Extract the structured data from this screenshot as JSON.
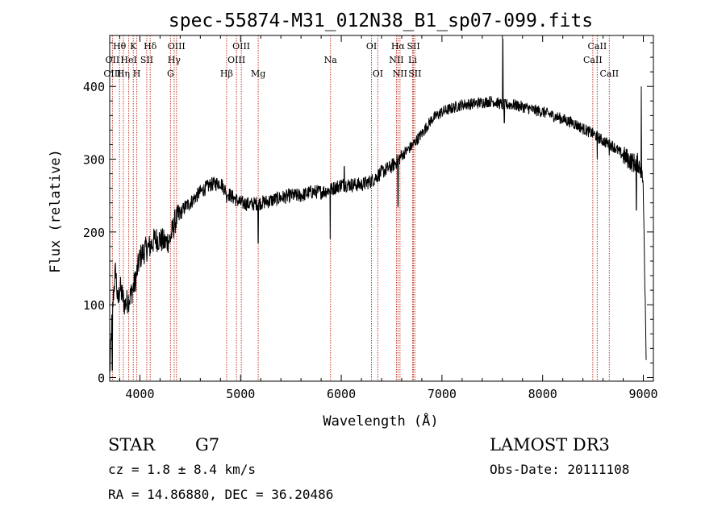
{
  "chart_data": {
    "type": "line",
    "title": "spec-55874-M31_012N38_B1_sp07-099.fits",
    "xlabel": "Wavelength (Å)",
    "ylabel": "Flux (relative)",
    "xlim": [
      3700,
      9100
    ],
    "ylim": [
      -5,
      470
    ],
    "x_ticks": [
      4000,
      5000,
      6000,
      7000,
      8000,
      9000
    ],
    "y_ticks": [
      0,
      100,
      200,
      300,
      400
    ],
    "series": [
      {
        "name": "spectrum",
        "anchors": [
          [
            3700,
            5
          ],
          [
            3720,
            70
          ],
          [
            3740,
            120
          ],
          [
            3760,
            150
          ],
          [
            3780,
            100
          ],
          [
            3800,
            125
          ],
          [
            3850,
            100
          ],
          [
            3900,
            110
          ],
          [
            3950,
            130
          ],
          [
            4000,
            165
          ],
          [
            4050,
            175
          ],
          [
            4100,
            180
          ],
          [
            4150,
            190
          ],
          [
            4200,
            190
          ],
          [
            4250,
            185
          ],
          [
            4300,
            190
          ],
          [
            4350,
            215
          ],
          [
            4400,
            225
          ],
          [
            4450,
            235
          ],
          [
            4500,
            240
          ],
          [
            4600,
            255
          ],
          [
            4700,
            265
          ],
          [
            4800,
            268
          ],
          [
            4860,
            255
          ],
          [
            4900,
            250
          ],
          [
            5000,
            240
          ],
          [
            5100,
            238
          ],
          [
            5200,
            240
          ],
          [
            5300,
            243
          ],
          [
            5400,
            247
          ],
          [
            5500,
            250
          ],
          [
            5600,
            250
          ],
          [
            5700,
            255
          ],
          [
            5800,
            255
          ],
          [
            5890,
            258
          ],
          [
            6000,
            265
          ],
          [
            6100,
            265
          ],
          [
            6200,
            265
          ],
          [
            6300,
            270
          ],
          [
            6400,
            282
          ],
          [
            6500,
            290
          ],
          [
            6560,
            298
          ],
          [
            6600,
            305
          ],
          [
            6700,
            318
          ],
          [
            6800,
            335
          ],
          [
            6900,
            355
          ],
          [
            7000,
            365
          ],
          [
            7100,
            370
          ],
          [
            7200,
            375
          ],
          [
            7300,
            376
          ],
          [
            7400,
            378
          ],
          [
            7500,
            380
          ],
          [
            7600,
            375
          ],
          [
            7700,
            375
          ],
          [
            7800,
            372
          ],
          [
            7900,
            368
          ],
          [
            8000,
            365
          ],
          [
            8100,
            360
          ],
          [
            8200,
            355
          ],
          [
            8300,
            350
          ],
          [
            8400,
            342
          ],
          [
            8500,
            335
          ],
          [
            8600,
            325
          ],
          [
            8700,
            318
          ],
          [
            8800,
            305
          ],
          [
            8850,
            300
          ],
          [
            8900,
            295
          ],
          [
            8950,
            295
          ],
          [
            8990,
            280
          ],
          [
            9000,
            250
          ],
          [
            9020,
            100
          ],
          [
            9030,
            20
          ]
        ],
        "spikes": [
          [
            7605,
            465
          ],
          [
            7620,
            350
          ],
          [
            6563,
            235
          ],
          [
            5890,
            190
          ],
          [
            5175,
            185
          ],
          [
            8542,
            300
          ],
          [
            8662,
            305
          ],
          [
            8930,
            230
          ],
          [
            8980,
            400
          ],
          [
            3725,
            10
          ],
          [
            4861,
            240
          ],
          [
            6030,
            290
          ]
        ]
      }
    ],
    "lines": [
      {
        "label": "Hθ",
        "wl": 3797,
        "row": 0
      },
      {
        "label": "OII",
        "wl": 3727,
        "row": 1
      },
      {
        "label": "OIII",
        "wl": 3727,
        "row": 2
      },
      {
        "label": "K",
        "wl": 3934,
        "row": 0
      },
      {
        "label": "HeI",
        "wl": 3889,
        "row": 1
      },
      {
        "label": "Hη",
        "wl": 3835,
        "row": 2
      },
      {
        "label": "Hδ",
        "wl": 4102,
        "row": 0
      },
      {
        "label": "SII",
        "wl": 4068,
        "row": 1
      },
      {
        "label": "H",
        "wl": 3969,
        "row": 2
      },
      {
        "label": "OIII",
        "wl": 4363,
        "row": 0
      },
      {
        "label": "Hγ",
        "wl": 4340,
        "row": 1
      },
      {
        "label": "G",
        "wl": 4304,
        "row": 2
      },
      {
        "label": "OIII",
        "wl": 5007,
        "row": 0
      },
      {
        "label": "OIII",
        "wl": 4959,
        "row": 1
      },
      {
        "label": "Hβ",
        "wl": 4861,
        "row": 2
      },
      {
        "label": "Mg",
        "wl": 5175,
        "row": 2
      },
      {
        "label": "Na",
        "wl": 5893,
        "row": 1
      },
      {
        "label": "OI",
        "wl": 6300,
        "row": 0
      },
      {
        "label": "OI",
        "wl": 6363,
        "row": 2
      },
      {
        "label": "Hα",
        "wl": 6563,
        "row": 0
      },
      {
        "label": "NII",
        "wl": 6548,
        "row": 1
      },
      {
        "label": "NII",
        "wl": 6583,
        "row": 2
      },
      {
        "label": "SII",
        "wl": 6717,
        "row": 0
      },
      {
        "label": "Li",
        "wl": 6708,
        "row": 1
      },
      {
        "label": "SII",
        "wl": 6731,
        "row": 2
      },
      {
        "label": "CaII",
        "wl": 8542,
        "row": 0
      },
      {
        "label": "CaII",
        "wl": 8498,
        "row": 1
      },
      {
        "label": "CaII",
        "wl": 8662,
        "row": 2
      }
    ],
    "line_markers_wl": [
      3727,
      3797,
      3835,
      3889,
      3934,
      3969,
      4068,
      4102,
      4304,
      4340,
      4363,
      4861,
      4959,
      5007,
      5175,
      5893,
      6300,
      6363,
      6548,
      6563,
      6583,
      6708,
      6717,
      6731,
      8498,
      8542,
      8662
    ]
  },
  "info": {
    "class": "STAR",
    "subclass": "G7",
    "cz": "cz = 1.8 ± 8.4 km/s",
    "radec": "RA =  14.86880, DEC =  36.20486",
    "survey": "LAMOST DR3",
    "obsdate": "Obs-Date: 20111108"
  }
}
